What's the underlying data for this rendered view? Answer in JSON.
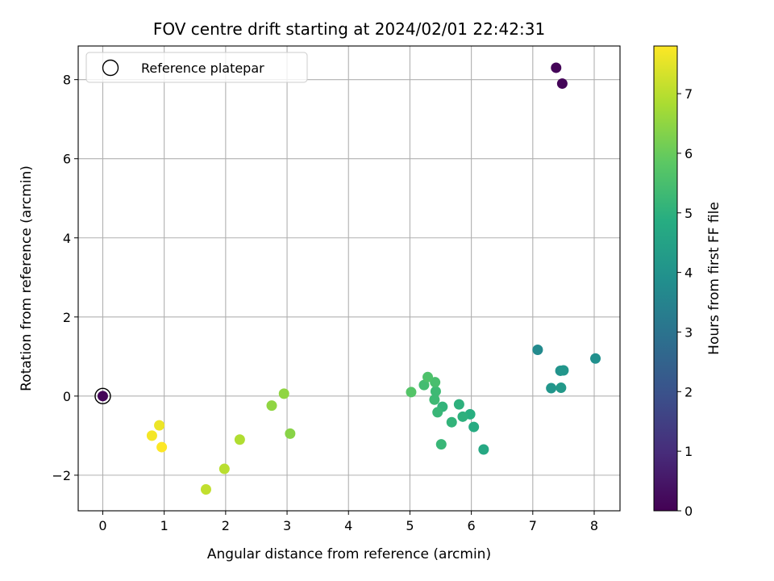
{
  "chart_data": {
    "type": "scatter",
    "title": "FOV centre drift starting at 2024/02/01 22:42:31",
    "xlabel": "Angular distance from reference (arcmin)",
    "ylabel": "Rotation from reference (arcmin)",
    "xlim": [
      -0.4,
      8.42
    ],
    "ylim": [
      -2.9,
      8.85
    ],
    "xticks": [
      0,
      1,
      2,
      3,
      4,
      5,
      6,
      7,
      8
    ],
    "yticks": [
      -2,
      0,
      2,
      4,
      6,
      8
    ],
    "xtick_labels": [
      "0",
      "1",
      "2",
      "3",
      "4",
      "5",
      "6",
      "7",
      "8"
    ],
    "ytick_labels": [
      "−2",
      "0",
      "2",
      "4",
      "6",
      "8"
    ],
    "grid": true,
    "legend": {
      "placement": "top-left",
      "entries": [
        "Reference platepar"
      ]
    },
    "reference_point": {
      "x": 0,
      "y": 0,
      "hours": 0.1
    },
    "colorbar": {
      "label": "Hours from first FF file",
      "range": [
        0,
        7.8
      ],
      "colormap": "viridis",
      "ticks": [
        0,
        1,
        2,
        3,
        4,
        5,
        6,
        7
      ],
      "tick_labels": [
        "0",
        "1",
        "2",
        "3",
        "4",
        "5",
        "6",
        "7"
      ]
    },
    "points": [
      {
        "x": 0,
        "y": 0,
        "hours": 0.1
      },
      {
        "x": 7.38,
        "y": 8.3,
        "hours": 0.1
      },
      {
        "x": 7.48,
        "y": 7.9,
        "hours": 0.1
      },
      {
        "x": 7.08,
        "y": 1.17,
        "hours": 3.7
      },
      {
        "x": 8.02,
        "y": 0.95,
        "hours": 3.9
      },
      {
        "x": 7.45,
        "y": 0.64,
        "hours": 4.0
      },
      {
        "x": 7.5,
        "y": 0.65,
        "hours": 4.1
      },
      {
        "x": 7.3,
        "y": 0.2,
        "hours": 4.1
      },
      {
        "x": 7.46,
        "y": 0.21,
        "hours": 4.2
      },
      {
        "x": 6.2,
        "y": -1.35,
        "hours": 4.7
      },
      {
        "x": 6.04,
        "y": -0.78,
        "hours": 4.8
      },
      {
        "x": 5.98,
        "y": -0.46,
        "hours": 4.9
      },
      {
        "x": 5.86,
        "y": -0.52,
        "hours": 5.0
      },
      {
        "x": 5.8,
        "y": -0.21,
        "hours": 5.0
      },
      {
        "x": 5.68,
        "y": -0.66,
        "hours": 5.1
      },
      {
        "x": 5.51,
        "y": -1.22,
        "hours": 5.2
      },
      {
        "x": 5.53,
        "y": -0.27,
        "hours": 5.1
      },
      {
        "x": 5.45,
        "y": -0.41,
        "hours": 5.2
      },
      {
        "x": 5.4,
        "y": -0.09,
        "hours": 5.3
      },
      {
        "x": 5.42,
        "y": 0.12,
        "hours": 5.3
      },
      {
        "x": 5.23,
        "y": 0.28,
        "hours": 5.4
      },
      {
        "x": 5.41,
        "y": 0.35,
        "hours": 5.5
      },
      {
        "x": 5.29,
        "y": 0.48,
        "hours": 5.6
      },
      {
        "x": 5.02,
        "y": 0.1,
        "hours": 5.7
      },
      {
        "x": 3.05,
        "y": -0.95,
        "hours": 6.4
      },
      {
        "x": 2.95,
        "y": 0.06,
        "hours": 6.5
      },
      {
        "x": 2.75,
        "y": -0.24,
        "hours": 6.5
      },
      {
        "x": 2.23,
        "y": -1.1,
        "hours": 6.9
      },
      {
        "x": 1.98,
        "y": -1.84,
        "hours": 7.0
      },
      {
        "x": 1.68,
        "y": -2.36,
        "hours": 7.1
      },
      {
        "x": 0.92,
        "y": -0.74,
        "hours": 7.6
      },
      {
        "x": 0.8,
        "y": -1.0,
        "hours": 7.7
      },
      {
        "x": 0.96,
        "y": -1.29,
        "hours": 7.8
      }
    ]
  }
}
